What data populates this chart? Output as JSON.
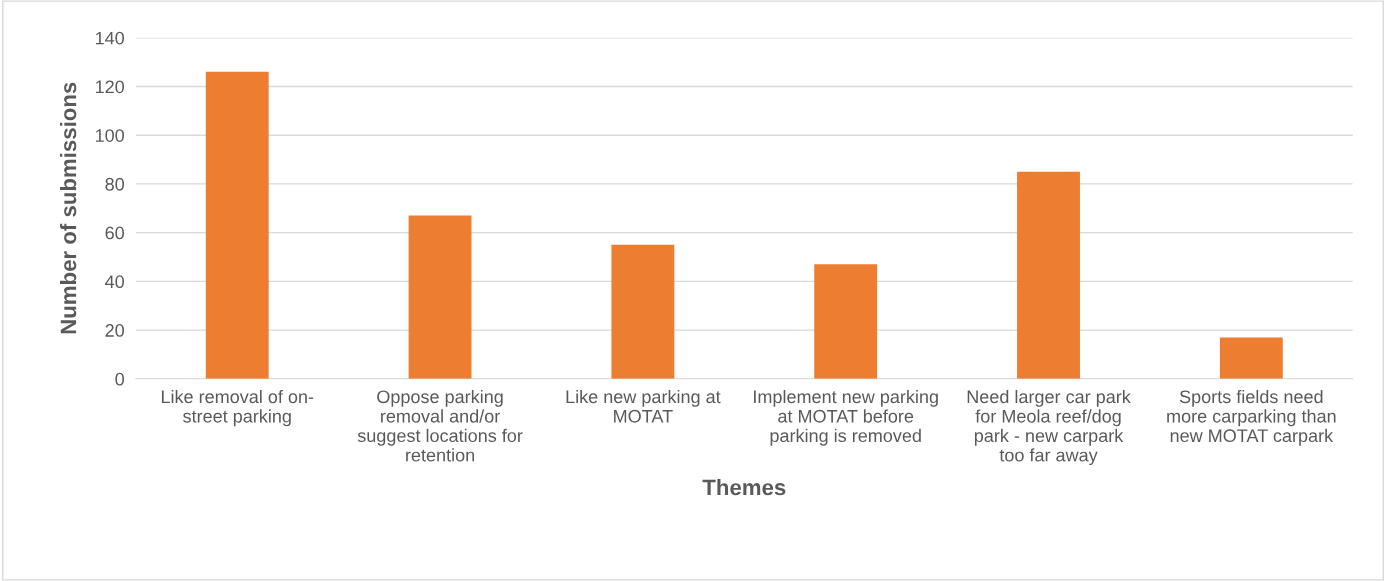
{
  "chart_data": {
    "type": "bar",
    "xlabel": "Themes",
    "ylabel": "Number of submissions",
    "categories": [
      "Like removal of on-street parking",
      "Oppose parking removal and/or suggest locations for retention",
      "Like new parking at MOTAT",
      "Implement new parking at MOTAT before parking is removed",
      "Need larger car park for Meola reef/dog park - new carpark too far away",
      "Sports fields need more carparking than new MOTAT carpark"
    ],
    "values": [
      126,
      67,
      55,
      47,
      85,
      17
    ],
    "color": "#ed7d31",
    "ylim": [
      0,
      140
    ],
    "yticks": [
      0,
      20,
      40,
      60,
      80,
      100,
      120,
      140
    ],
    "grid": "y",
    "legend": false
  }
}
